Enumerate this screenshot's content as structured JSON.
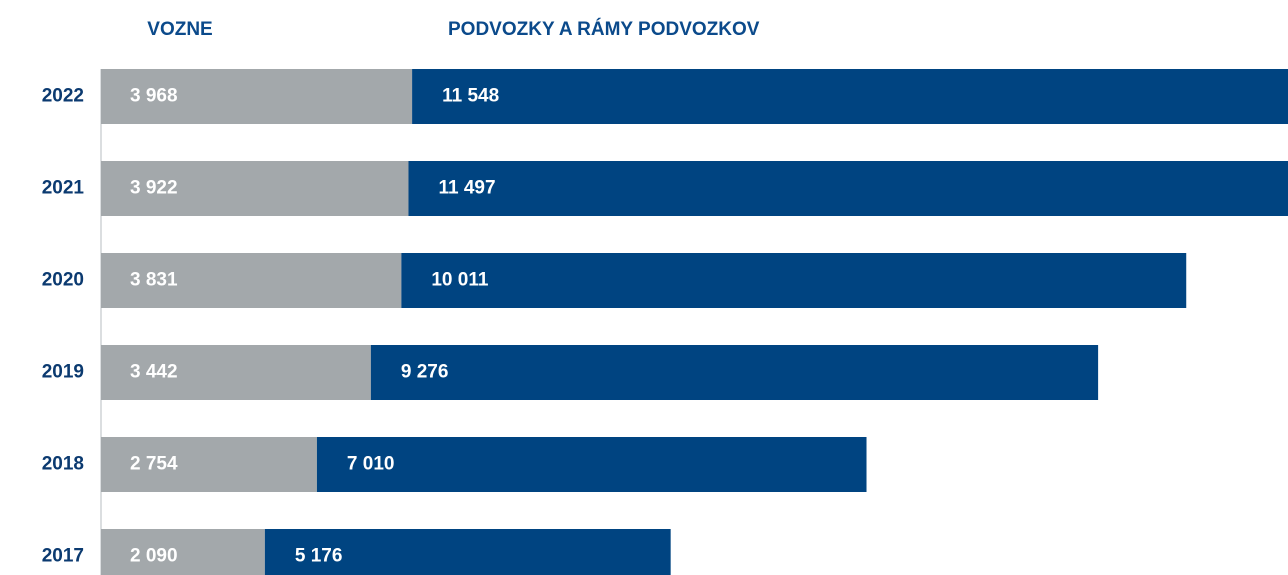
{
  "chart_data": {
    "type": "stacked_barh",
    "categories": [
      "2022",
      "2021",
      "2020",
      "2019",
      "2018",
      "2017"
    ],
    "series": [
      {
        "name": "VOZNE",
        "color": "#a3a8ab",
        "values": [
          3968,
          3922,
          3831,
          3442,
          2754,
          2090
        ],
        "value_labels": [
          "3 968",
          "3 922",
          "3 831",
          "3 442",
          "2 754",
          "2 090"
        ]
      },
      {
        "name": "PODVOZKY A RÁMY PODVOZKOV",
        "color": "#004481",
        "values": [
          11548,
          11497,
          10011,
          9276,
          7010,
          5176
        ],
        "value_labels": [
          "11 548",
          "11 497",
          "10 011",
          "9 276",
          "7 010",
          "5 176"
        ]
      }
    ],
    "xlim": [
      0,
      15140
    ]
  }
}
